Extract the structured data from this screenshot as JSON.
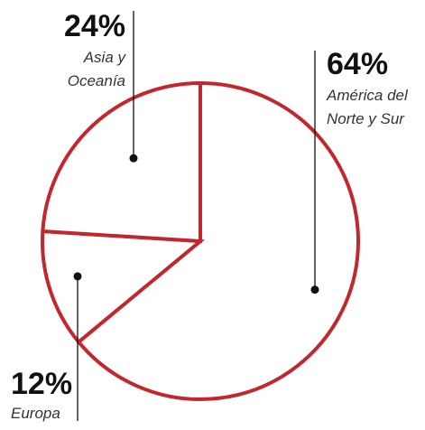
{
  "chart_data": {
    "type": "pie",
    "categories": [
      "América del Norte y Sur",
      "Europa",
      "Asia y Oceanía"
    ],
    "values": [
      64,
      12,
      24
    ],
    "labels": [
      {
        "value": "64%",
        "lines": [
          "América del",
          "Norte y Sur"
        ]
      },
      {
        "value": "12%",
        "lines": [
          "Europa"
        ]
      },
      {
        "value": "24%",
        "lines": [
          "Asia y",
          "Oceanía"
        ]
      }
    ],
    "title": "",
    "legend": "none"
  },
  "colors": {
    "slice_stroke": "#c1272d",
    "slice_fill": "#ffffff",
    "leader": "#111111"
  }
}
